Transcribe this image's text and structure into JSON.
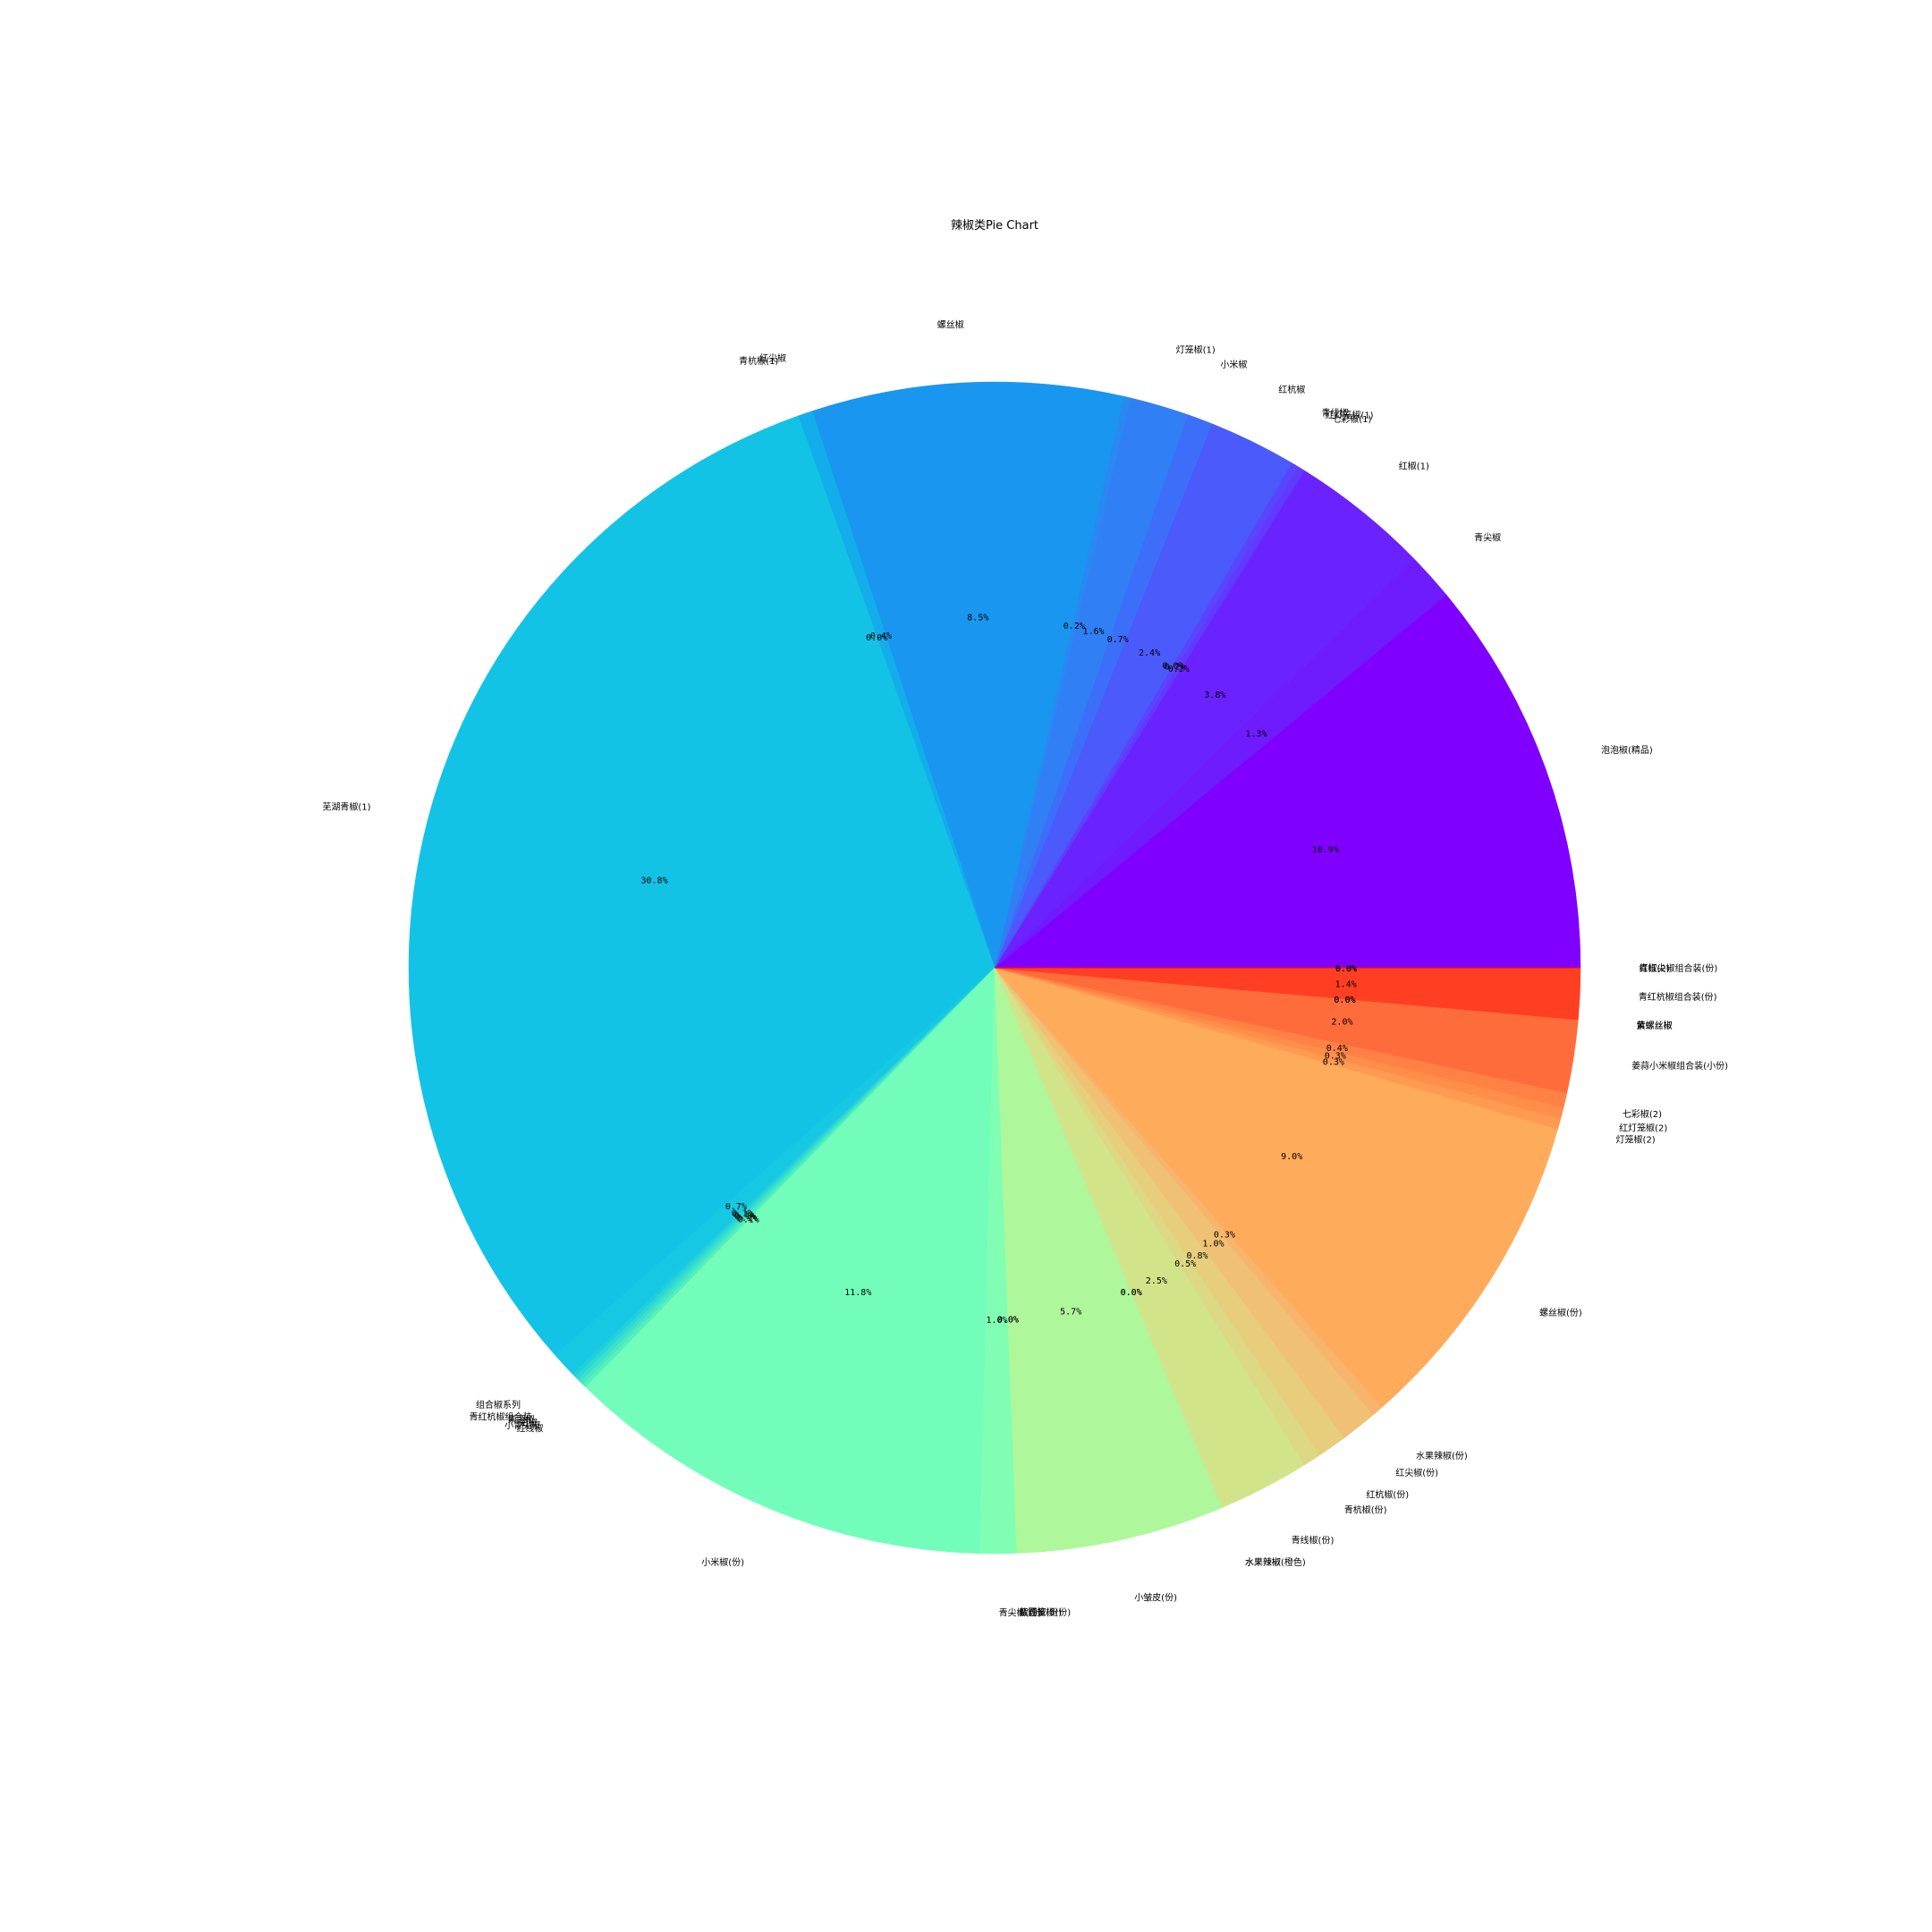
{
  "chart_data": {
    "type": "pie",
    "title": "辣椒类Pie Chart",
    "start_angle_deg": 0,
    "direction": "counterclockwise",
    "slices": [
      {
        "label": "泡泡椒(精品)",
        "value": 10.9,
        "pct_label": "10.9%",
        "color": "#8000ff"
      },
      {
        "label": "青尖椒",
        "value": 1.3,
        "pct_label": "1.3%",
        "color": "#6e1cfe"
      },
      {
        "label": "红椒(1)",
        "value": 3.8,
        "pct_label": "3.8%",
        "color": "#6a22fe"
      },
      {
        "label": "七彩椒(1)",
        "value": 0.2,
        "pct_label": "0.2%",
        "color": "#603afe"
      },
      {
        "label": "红灯笼椒(1)",
        "value": 0.2,
        "pct_label": "0.2%",
        "color": "#5a44fd"
      },
      {
        "label": "青线椒",
        "value": 0.0,
        "pct_label": "0.0%",
        "color": "#5352fc"
      },
      {
        "label": "红杭椒",
        "value": 2.4,
        "pct_label": "2.4%",
        "color": "#4a5afb"
      },
      {
        "label": "小米椒",
        "value": 0.7,
        "pct_label": "0.7%",
        "color": "#3d6ef9"
      },
      {
        "label": "灯笼椒(1)",
        "value": 1.6,
        "pct_label": "1.6%",
        "color": "#307ff5"
      },
      {
        "label": "",
        "value": 0.2,
        "pct_label": "0.2%",
        "color": "#2a88f3"
      },
      {
        "label": "螺丝椒",
        "value": 8.5,
        "pct_label": "8.5%",
        "color": "#1996f0"
      },
      {
        "label": "红尖椒",
        "value": 0.4,
        "pct_label": "0.4%",
        "color": "#13adeb"
      },
      {
        "label": "青杭椒(1)",
        "value": 0.0,
        "pct_label": "0.0%",
        "color": "#12b7e8"
      },
      {
        "label": "芜湖青椒(1)",
        "value": 30.8,
        "pct_label": "30.8%",
        "color": "#12c3e6"
      },
      {
        "label": "组合椒系列",
        "value": 0.7,
        "pct_label": "0.7%",
        "color": "#16c8e3"
      },
      {
        "label": "青红杭椒组合装",
        "value": 0.1,
        "pct_label": "0.1%",
        "color": "#1fd0dc"
      },
      {
        "label": "紫圆椒",
        "value": 0.1,
        "pct_label": "0.1%",
        "color": "#2ad8d5"
      },
      {
        "label": "彩椒",
        "value": 0.1,
        "pct_label": "0.1%",
        "color": "#3ae0cb"
      },
      {
        "label": "小青尖椒",
        "value": 0.1,
        "pct_label": "0.1%",
        "color": "#48e8c4"
      },
      {
        "label": "红线椒",
        "value": 0.1,
        "pct_label": "0.1%",
        "color": "#56f0bc"
      },
      {
        "label": "小米椒(份)",
        "value": 11.8,
        "pct_label": "11.8%",
        "color": "#72feba"
      },
      {
        "label": "青尖椒(份)",
        "value": 1.0,
        "pct_label": "1.0%",
        "color": "#80ffb4"
      },
      {
        "label": "红灯笼椒(份)",
        "value": 0.0,
        "pct_label": "0.0%",
        "color": "#88ffae"
      },
      {
        "label": "紫圆椒(份)",
        "value": 0.0,
        "pct_label": "0.0%",
        "color": "#92fda8"
      },
      {
        "label": "小皱皮(份)",
        "value": 5.7,
        "pct_label": "5.7%",
        "color": "#aef79a"
      },
      {
        "label": "水果辣椒",
        "value": 0.0,
        "pct_label": "0.0%",
        "color": "#c4ee92"
      },
      {
        "label": "水果辣椒(橙色)",
        "value": 0.0,
        "pct_label": "0.0%",
        "color": "#c8ec90"
      },
      {
        "label": "青线椒(份)",
        "value": 2.5,
        "pct_label": "2.5%",
        "color": "#d2e48a"
      },
      {
        "label": "青杭椒(份)",
        "value": 0.5,
        "pct_label": "0.5%",
        "color": "#dcd883"
      },
      {
        "label": "红杭椒(份)",
        "value": 0.8,
        "pct_label": "0.8%",
        "color": "#e6ce7c"
      },
      {
        "label": "红尖椒(份)",
        "value": 1.0,
        "pct_label": "1.0%",
        "color": "#f0c074"
      },
      {
        "label": "水果辣椒(份)",
        "value": 0.3,
        "pct_label": "0.3%",
        "color": "#f7b46c"
      },
      {
        "label": "螺丝椒(份)",
        "value": 9.0,
        "pct_label": "9.0%",
        "color": "#ffab5c"
      },
      {
        "label": "灯笼椒(2)",
        "value": 0.3,
        "pct_label": "0.3%",
        "color": "#ff9a52"
      },
      {
        "label": "红灯笼椒(2)",
        "value": 0.3,
        "pct_label": "0.3%",
        "color": "#ff8e4a"
      },
      {
        "label": "七彩椒(2)",
        "value": 0.4,
        "pct_label": "0.4%",
        "color": "#ff8244"
      },
      {
        "label": "姜蒜小米椒组合装(小份)",
        "value": 2.0,
        "pct_label": "2.0%",
        "color": "#ff6c3c"
      },
      {
        "label": "紫螺丝椒",
        "value": 0.0,
        "pct_label": "0.0%",
        "color": "#ff5e34"
      },
      {
        "label": "黄螺丝椒",
        "value": 0.0,
        "pct_label": "0.0%",
        "color": "#ff5830"
      },
      {
        "label": "青红杭椒组合装(份)",
        "value": 1.4,
        "pct_label": "1.4%",
        "color": "#ff3e22"
      },
      {
        "label": "红椒(2)",
        "value": 0.0,
        "pct_label": "0.0%",
        "color": "#ff2a14"
      },
      {
        "label": "",
        "value": 0.0,
        "pct_label": "0.0%",
        "color": "#ff2210"
      },
      {
        "label": "青红尖椒组合装(份)",
        "value": 0.0,
        "pct_label": "0.0%",
        "color": "#ff0000"
      }
    ]
  }
}
